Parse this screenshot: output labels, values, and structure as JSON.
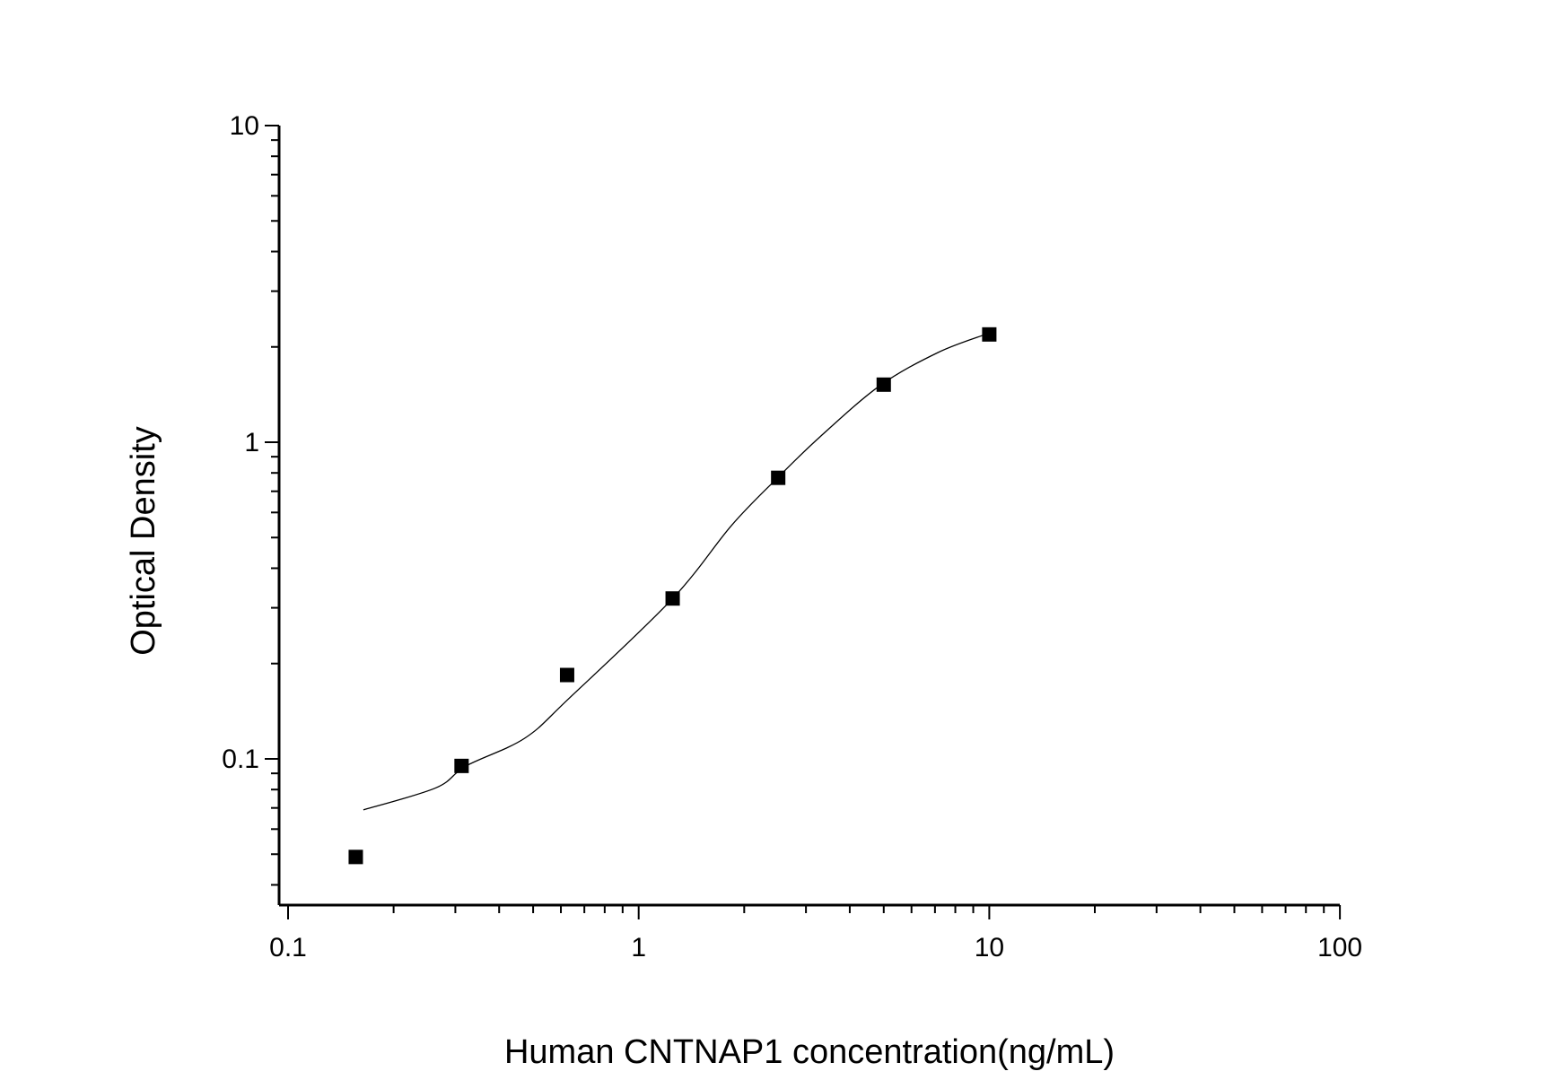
{
  "chart_data": {
    "type": "scatter",
    "title": "",
    "xlabel": "Human CNTNAP1 concentration(ng/mL)",
    "ylabel": "Optical Density",
    "x_scale": "log",
    "y_scale": "log",
    "xlim": [
      0.094,
      100
    ],
    "ylim": [
      0.035,
      10
    ],
    "x_ticks": [
      {
        "value": 0.1,
        "label": "0.1"
      },
      {
        "value": 1,
        "label": "1"
      },
      {
        "value": 10,
        "label": "10"
      },
      {
        "value": 100,
        "label": "100"
      }
    ],
    "y_ticks": [
      {
        "value": 0.1,
        "label": "0.1"
      },
      {
        "value": 1,
        "label": "1"
      },
      {
        "value": 10,
        "label": "10"
      }
    ],
    "grid": false,
    "legend": "none",
    "points": {
      "x": [
        0.156,
        0.3125,
        0.625,
        1.25,
        2.5,
        5,
        10
      ],
      "y": [
        0.049,
        0.095,
        0.184,
        0.321,
        0.772,
        1.52,
        2.19
      ]
    },
    "fit_curve": {
      "x": [
        0.164,
        0.264,
        0.322,
        0.472,
        0.632,
        1.25,
        1.84,
        2.49,
        3.29,
        4.88,
        7.14,
        9.75
      ],
      "y": [
        0.069,
        0.081,
        0.095,
        0.116,
        0.155,
        0.321,
        0.546,
        0.772,
        1.04,
        1.51,
        1.92,
        2.19
      ]
    },
    "colors": {
      "marker": "#000000",
      "line": "#000000",
      "axis": "#000000"
    }
  }
}
